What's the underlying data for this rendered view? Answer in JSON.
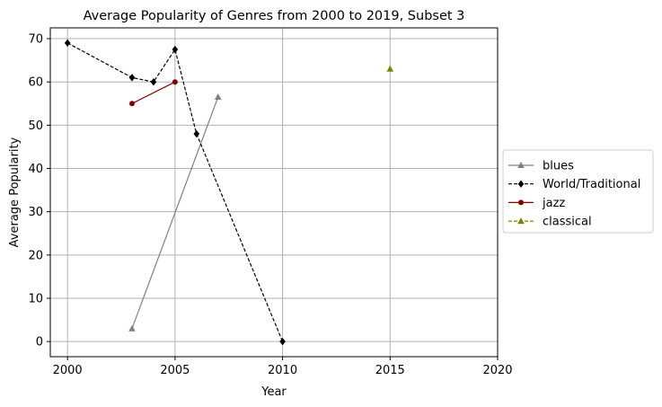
{
  "chart_data": {
    "type": "line",
    "title": "Average Popularity of Genres from 2000 to 2019, Subset 3",
    "xlabel": "Year",
    "ylabel": "Average Popularity",
    "xlim": [
      1999.2,
      2020
    ],
    "ylim": [
      -3.5,
      72.5
    ],
    "xticks": [
      2000,
      2005,
      2010,
      2015,
      2020
    ],
    "yticks": [
      0,
      10,
      20,
      30,
      40,
      50,
      60,
      70
    ],
    "grid": true,
    "legend": "center-right outside",
    "series": [
      {
        "name": "blues",
        "color": "#808080",
        "linestyle": "solid",
        "marker": "triangle",
        "x": [
          2003,
          2007
        ],
        "y": [
          3,
          56.5
        ]
      },
      {
        "name": "World/Traditional",
        "color": "#000000",
        "linestyle": "dashed",
        "marker": "diamond",
        "x": [
          2000,
          2003,
          2004,
          2005,
          2006,
          2010
        ],
        "y": [
          69,
          61,
          60,
          67.5,
          48,
          0
        ]
      },
      {
        "name": "jazz",
        "color": "#800000",
        "linestyle": "solid",
        "marker": "circle",
        "x": [
          2003,
          2005
        ],
        "y": [
          55,
          60
        ]
      },
      {
        "name": "classical",
        "color": "#808000",
        "linestyle": "dashed",
        "marker": "triangle",
        "x": [
          2015
        ],
        "y": [
          63
        ]
      }
    ]
  }
}
